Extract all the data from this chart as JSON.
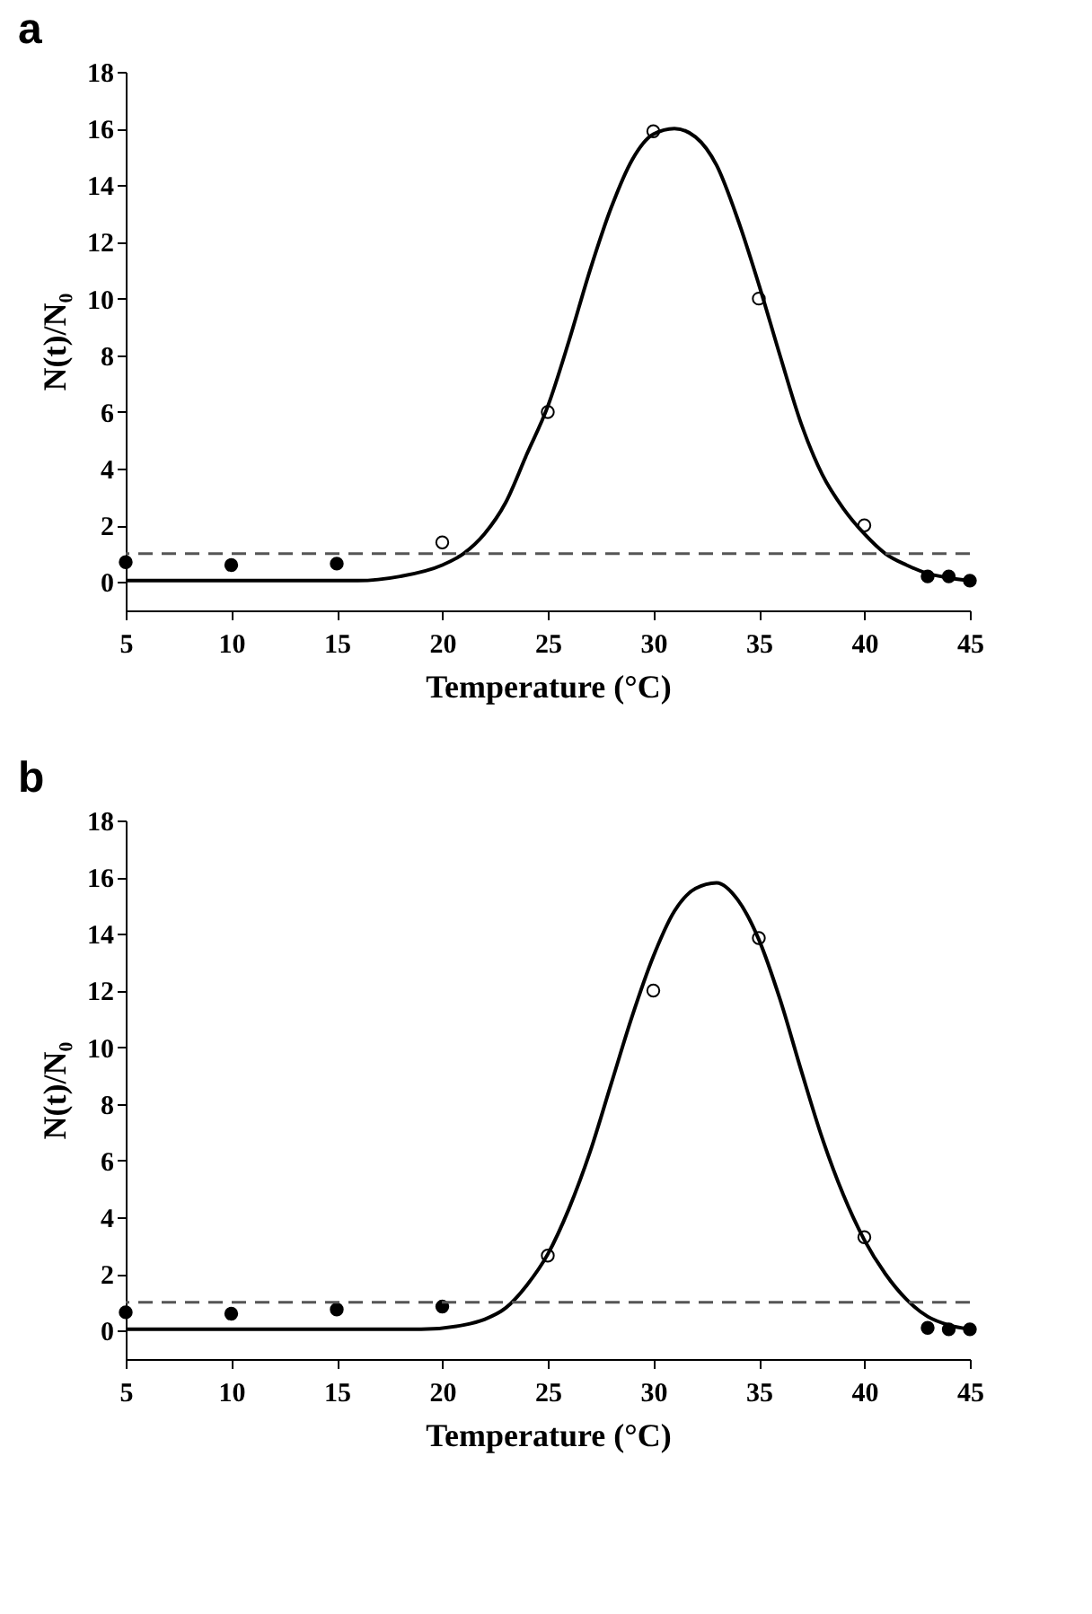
{
  "chart_data": [
    {
      "type": "scatter",
      "title": "a",
      "xlabel": "Temperature (°C)",
      "ylabel": "N(t)/N₀",
      "xlim": [
        5,
        45
      ],
      "ylim": [
        -1,
        18
      ],
      "xticks": [
        5,
        10,
        15,
        20,
        25,
        30,
        35,
        40,
        45
      ],
      "yticks": [
        0,
        2,
        4,
        6,
        8,
        10,
        12,
        14,
        16,
        18
      ],
      "grid": false,
      "marker": "circle",
      "ref_lines": [
        {
          "axis": "y",
          "value": 1,
          "color": "#555555",
          "line_style": "dashed"
        }
      ],
      "series": [
        {
          "color": "#000000",
          "x": [
            5,
            10,
            15,
            43,
            44,
            45
          ],
          "values": [
            0.7,
            0.6,
            0.65,
            0.2,
            0.2,
            0.05
          ]
        },
        {
          "color": "#ffffff",
          "x": [
            20,
            25,
            30,
            35,
            40
          ],
          "values": [
            1.4,
            6.0,
            15.9,
            10.0,
            2.0
          ]
        },
        {
          "type": "line",
          "color": "#000000",
          "line_style": "solid",
          "marker": "none",
          "x": [
            5,
            16,
            18,
            20,
            21,
            22,
            23,
            24,
            25,
            26,
            27,
            28,
            29,
            30,
            31,
            32,
            33,
            34,
            35,
            36,
            37,
            38,
            39,
            40,
            41,
            42,
            43,
            44,
            45
          ],
          "values": [
            0.05,
            0.05,
            0.2,
            0.6,
            1.0,
            1.7,
            2.8,
            4.5,
            6.2,
            8.5,
            11,
            13.2,
            14.9,
            15.8,
            16.0,
            15.7,
            14.7,
            12.8,
            10.5,
            8,
            5.6,
            3.8,
            2.6,
            1.7,
            1.0,
            0.6,
            0.3,
            0.15,
            0.05
          ]
        }
      ]
    },
    {
      "type": "scatter",
      "title": "b",
      "xlabel": "Temperature (°C)",
      "ylabel": "N(t)/N₀",
      "xlim": [
        5,
        45
      ],
      "ylim": [
        -1,
        18
      ],
      "xticks": [
        5,
        10,
        15,
        20,
        25,
        30,
        35,
        40,
        45
      ],
      "yticks": [
        0,
        2,
        4,
        6,
        8,
        10,
        12,
        14,
        16,
        18
      ],
      "grid": false,
      "marker": "circle",
      "ref_lines": [
        {
          "axis": "y",
          "value": 1,
          "color": "#555555",
          "line_style": "dashed"
        }
      ],
      "series": [
        {
          "color": "#000000",
          "x": [
            5,
            10,
            15,
            20,
            43,
            44,
            45
          ],
          "values": [
            0.65,
            0.6,
            0.75,
            0.85,
            0.1,
            0.05,
            0.05
          ]
        },
        {
          "color": "#ffffff",
          "x": [
            25,
            30,
            35,
            40
          ],
          "values": [
            2.65,
            12.0,
            13.85,
            3.3
          ]
        },
        {
          "type": "line",
          "color": "#000000",
          "line_style": "solid",
          "marker": "none",
          "x": [
            5,
            19,
            21,
            22,
            23,
            24,
            25,
            26,
            27,
            28,
            29,
            30,
            31,
            32,
            33,
            34,
            35,
            36,
            37,
            38,
            39,
            40,
            41,
            42,
            43,
            44,
            45
          ],
          "values": [
            0.05,
            0.05,
            0.2,
            0.4,
            0.8,
            1.6,
            2.7,
            4.3,
            6.3,
            8.7,
            11.1,
            13.2,
            14.8,
            15.6,
            15.8,
            15.2,
            13.8,
            11.7,
            9.2,
            6.8,
            4.8,
            3.2,
            2.0,
            1.1,
            0.5,
            0.2,
            0.05
          ]
        }
      ]
    }
  ]
}
